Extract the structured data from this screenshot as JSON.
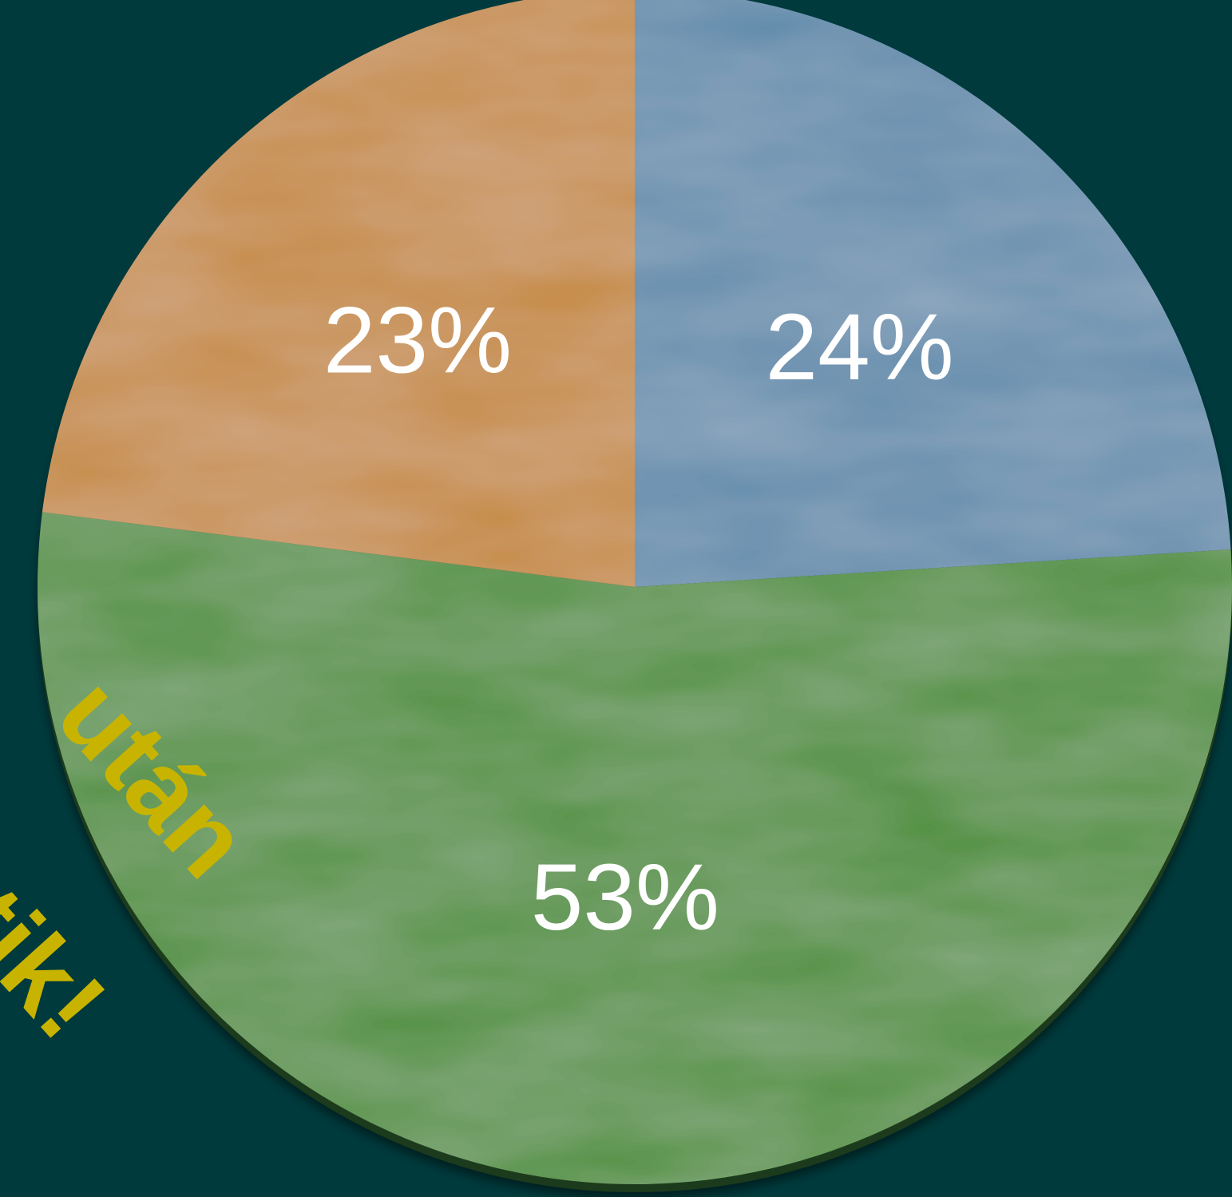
{
  "background": "#003a3c",
  "accent_text_color": "#c8b400",
  "chart_data": {
    "type": "pie",
    "start_angle_deg": 0,
    "direction": "clockwise",
    "slices": [
      {
        "label": "24%",
        "value": 24,
        "color": "#5e8aab"
      },
      {
        "label": "53%",
        "value": 53,
        "color": "#4a8e35"
      },
      {
        "label": "23%",
        "value": 23,
        "color": "#c5893e"
      }
    ]
  },
  "overlay_text": {
    "line1": "után",
    "line2": "tik!"
  }
}
